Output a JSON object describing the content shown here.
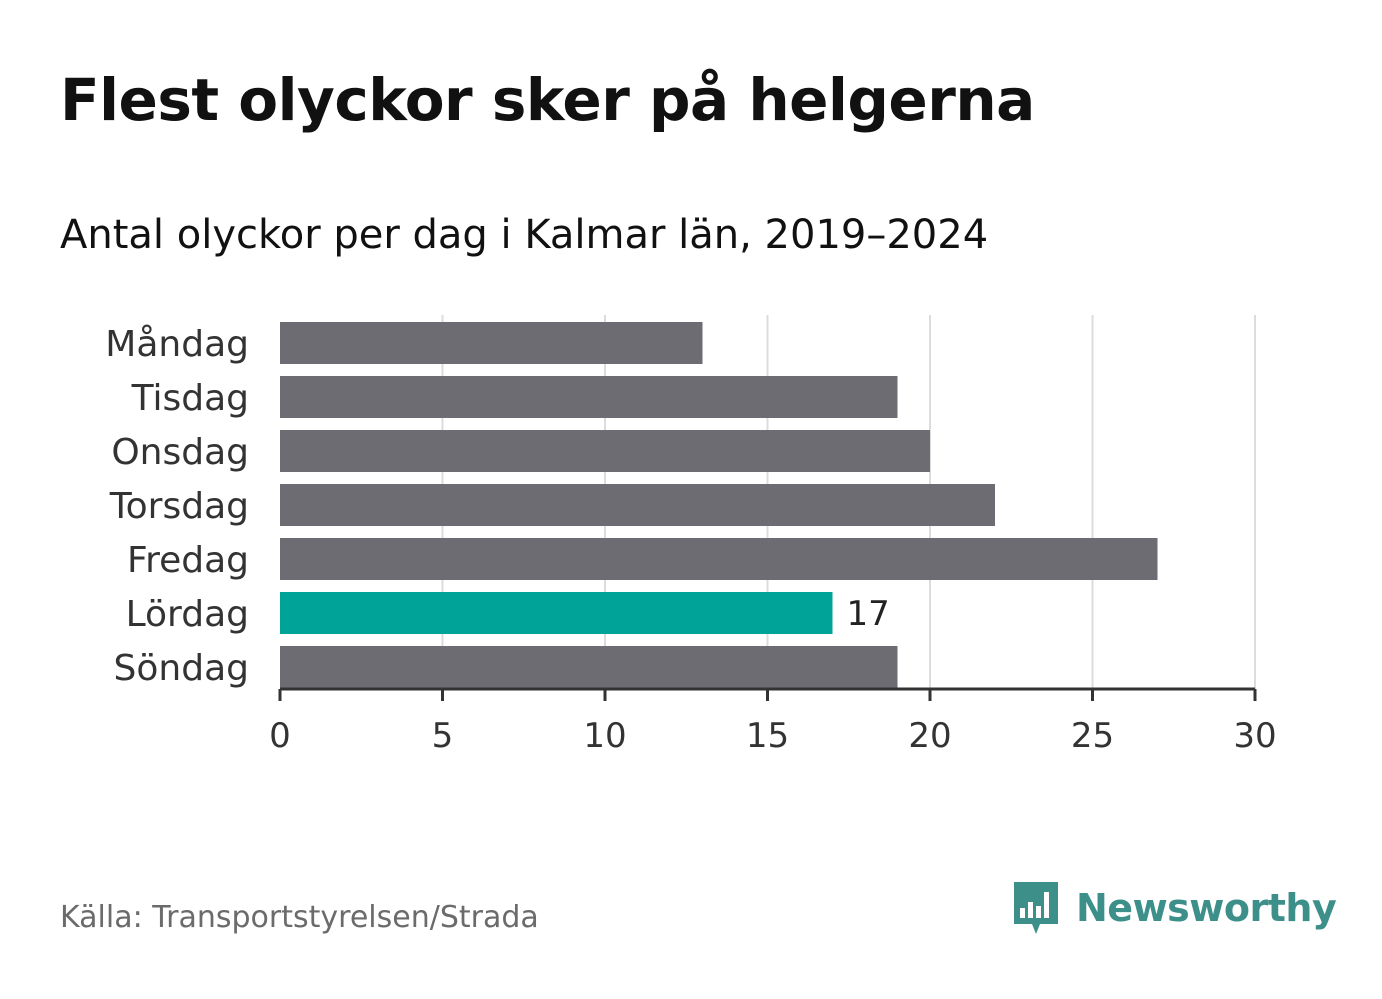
{
  "title": "Flest olyckor sker på helgerna",
  "subtitle": "Antal olyckor per dag i Kalmar län, 2019–2024",
  "source": "Källa: Transportstyrelsen/Strada",
  "logo": {
    "text": "Newsworthy",
    "icon": "newsworthy-logo-icon"
  },
  "colors": {
    "bar": "#6d6c72",
    "highlight": "#00a398",
    "logo": "#3d8f8a"
  },
  "chart_data": {
    "type": "bar",
    "orientation": "horizontal",
    "categories": [
      "Måndag",
      "Tisdag",
      "Onsdag",
      "Torsdag",
      "Fredag",
      "Lördag",
      "Söndag"
    ],
    "values": [
      13,
      19,
      20,
      22,
      27,
      17,
      19
    ],
    "highlight_index": 5,
    "highlight_label": "17",
    "xlim": [
      0,
      30
    ],
    "xticks": [
      0,
      5,
      10,
      15,
      20,
      25,
      30
    ],
    "xtick_labels": [
      "0",
      "5",
      "10",
      "15",
      "20",
      "25",
      "30"
    ],
    "grid": true
  }
}
